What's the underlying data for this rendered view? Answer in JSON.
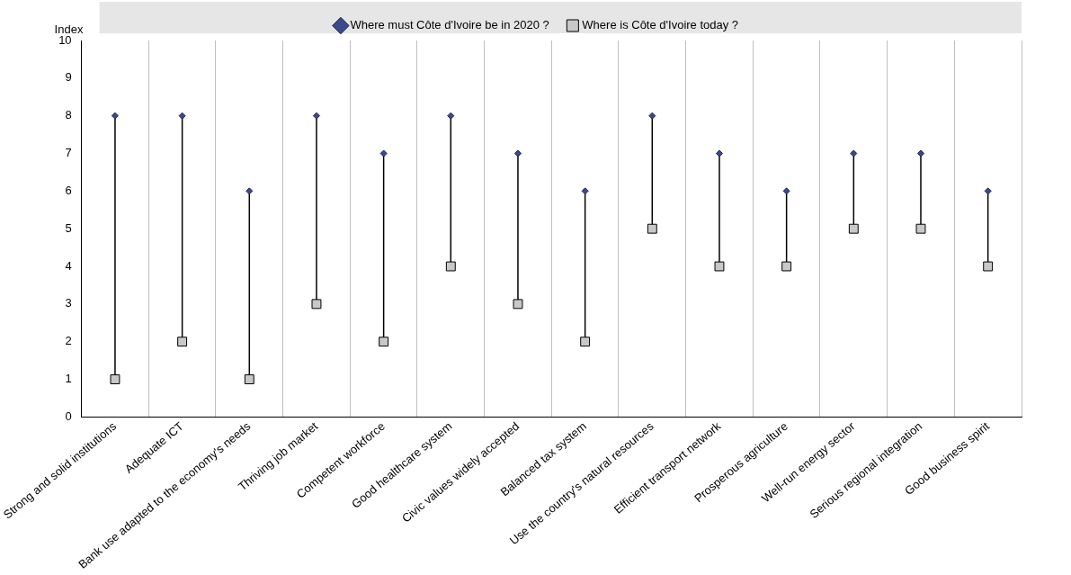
{
  "chart_data": {
    "type": "scatter",
    "ylabel": "Index",
    "categories": [
      "Strong and solid institutions",
      "Adequate ICT",
      "Bank use adapted to the economy's needs",
      "Thriving job market",
      "Competent workforce",
      "Good healthcare system",
      "Civic values widely accepted",
      "Balanced tax system",
      "Use the country's natural resources",
      "Efficient transport network",
      "Prosperous agriculture",
      "Well-run energy sector",
      "Serious regional integration",
      "Good business spirit"
    ],
    "series": [
      {
        "name": "Where must Côte d'Ivoire be in 2020 ?",
        "color": "#3b4a8c",
        "marker": "diamond",
        "values": [
          8,
          8,
          6,
          8,
          7,
          8,
          7,
          6,
          8,
          7,
          6,
          7,
          7,
          6
        ]
      },
      {
        "name": "Where is Côte d'Ivoire today ?",
        "color": "#c8c8c8",
        "marker": "square",
        "values": [
          1,
          2,
          1,
          3,
          2,
          4,
          3,
          2,
          5,
          4,
          4,
          5,
          5,
          4
        ]
      }
    ],
    "ylim": [
      0,
      10
    ],
    "yticks": [
      0,
      1,
      2,
      3,
      4,
      5,
      6,
      7,
      8,
      9,
      10
    ],
    "grid": "x",
    "legend": "top"
  }
}
